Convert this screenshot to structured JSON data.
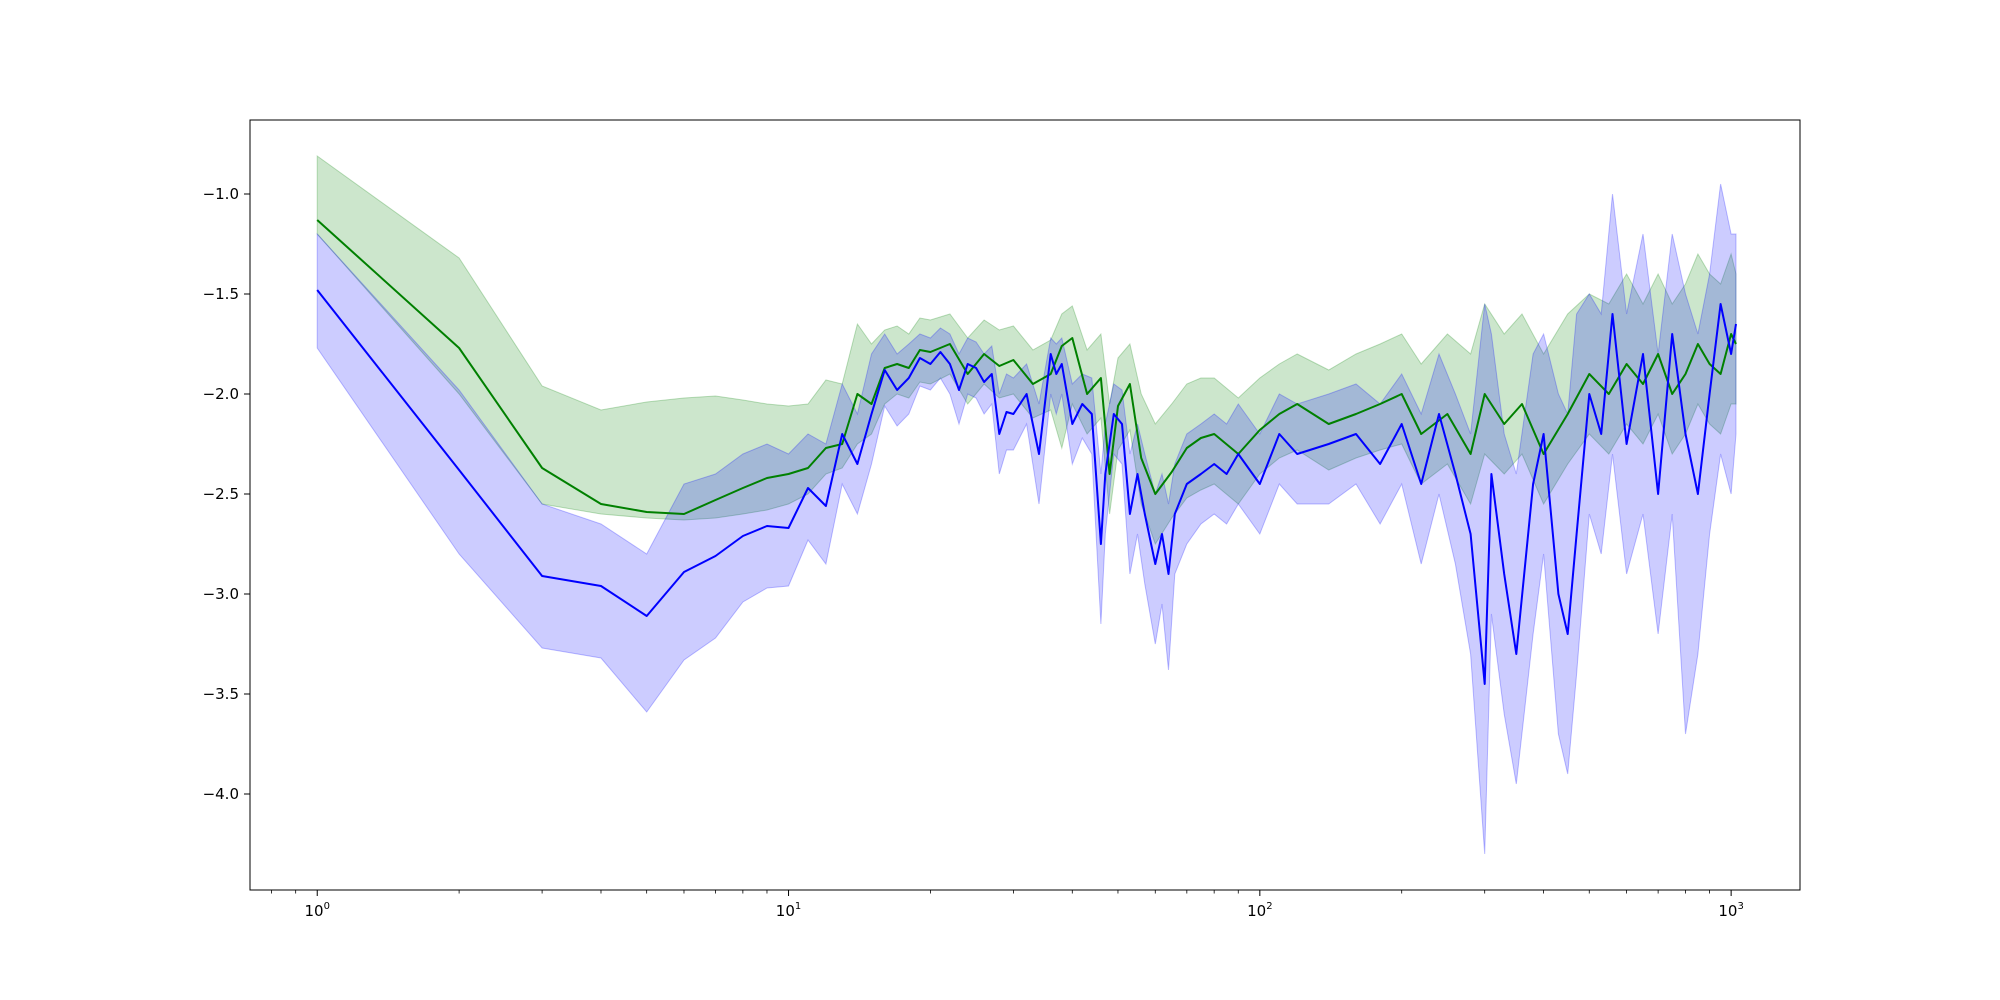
{
  "chart_data": {
    "type": "line",
    "title": "",
    "xlabel": "",
    "ylabel": "",
    "xscale": "log",
    "xlim": [
      0.72,
      1400
    ],
    "ylim": [
      -4.48,
      -0.63
    ],
    "grid": false,
    "legend": null,
    "x_ticks": [
      {
        "base": "10",
        "exp": "0",
        "value": 1
      },
      {
        "base": "10",
        "exp": "1",
        "value": 10
      },
      {
        "base": "10",
        "exp": "2",
        "value": 100
      },
      {
        "base": "10",
        "exp": "3",
        "value": 1000
      }
    ],
    "y_ticks": [
      {
        "label": "−1.0",
        "value": -1.0
      },
      {
        "label": "−1.5",
        "value": -1.5
      },
      {
        "label": "−2.0",
        "value": -2.0
      },
      {
        "label": "−2.5",
        "value": -2.5
      },
      {
        "label": "−3.0",
        "value": -3.0
      },
      {
        "label": "−3.5",
        "value": -3.5
      },
      {
        "label": "−4.0",
        "value": -4.0
      }
    ],
    "series": [
      {
        "color": "#008000",
        "band_color": "#008000",
        "band_opacity": 0.2,
        "x": [
          1,
          2,
          3,
          4,
          5,
          6,
          7,
          8,
          9,
          10,
          11,
          12,
          13,
          14,
          15,
          16,
          17,
          18,
          19,
          20,
          22,
          24,
          26,
          28,
          30,
          33,
          36,
          38,
          40,
          43,
          46,
          48,
          50,
          53,
          56,
          60,
          65,
          70,
          75,
          80,
          90,
          100,
          110,
          120,
          140,
          160,
          180,
          200,
          220,
          250,
          280,
          300,
          330,
          360,
          400,
          450,
          500,
          550,
          600,
          650,
          700,
          750,
          800,
          850,
          900,
          950,
          1000,
          1024
        ],
        "y": [
          -1.13,
          -1.77,
          -2.37,
          -2.55,
          -2.59,
          -2.6,
          -2.53,
          -2.47,
          -2.42,
          -2.4,
          -2.37,
          -2.27,
          -2.25,
          -2.0,
          -2.05,
          -1.87,
          -1.85,
          -1.87,
          -1.78,
          -1.79,
          -1.75,
          -1.9,
          -1.8,
          -1.86,
          -1.83,
          -1.95,
          -1.9,
          -1.76,
          -1.72,
          -2.0,
          -1.92,
          -2.4,
          -2.06,
          -1.95,
          -2.32,
          -2.5,
          -2.39,
          -2.27,
          -2.22,
          -2.2,
          -2.3,
          -2.18,
          -2.1,
          -2.05,
          -2.15,
          -2.1,
          -2.05,
          -2.0,
          -2.2,
          -2.1,
          -2.3,
          -2.0,
          -2.15,
          -2.05,
          -2.3,
          -2.1,
          -1.9,
          -2.0,
          -1.85,
          -1.95,
          -1.8,
          -2.0,
          -1.9,
          -1.75,
          -1.85,
          -1.9,
          -1.7,
          -1.75
        ],
        "upper": [
          -0.81,
          -1.32,
          -1.96,
          -2.08,
          -2.04,
          -2.02,
          -2.01,
          -2.03,
          -2.05,
          -2.06,
          -2.05,
          -1.93,
          -1.95,
          -1.65,
          -1.75,
          -1.68,
          -1.66,
          -1.7,
          -1.62,
          -1.63,
          -1.6,
          -1.72,
          -1.63,
          -1.68,
          -1.66,
          -1.78,
          -1.73,
          -1.6,
          -1.56,
          -1.78,
          -1.7,
          -2.05,
          -1.82,
          -1.75,
          -2.0,
          -2.15,
          -2.05,
          -1.95,
          -1.92,
          -1.92,
          -2.02,
          -1.92,
          -1.85,
          -1.8,
          -1.88,
          -1.8,
          -1.75,
          -1.7,
          -1.85,
          -1.7,
          -1.8,
          -1.55,
          -1.7,
          -1.6,
          -1.8,
          -1.6,
          -1.5,
          -1.55,
          -1.4,
          -1.55,
          -1.4,
          -1.55,
          -1.45,
          -1.3,
          -1.4,
          -1.45,
          -1.3,
          -1.4
        ],
        "lower": [
          -1.2,
          -2.0,
          -2.55,
          -2.6,
          -2.62,
          -2.63,
          -2.62,
          -2.6,
          -2.58,
          -2.55,
          -2.5,
          -2.4,
          -2.37,
          -2.25,
          -2.2,
          -2.05,
          -2.0,
          -2.02,
          -1.94,
          -1.95,
          -1.9,
          -2.05,
          -1.95,
          -2.02,
          -2.0,
          -2.12,
          -2.08,
          -2.27,
          -2.05,
          -2.2,
          -2.12,
          -2.6,
          -2.28,
          -2.18,
          -2.55,
          -2.75,
          -2.62,
          -2.52,
          -2.48,
          -2.45,
          -2.55,
          -2.4,
          -2.32,
          -2.28,
          -2.38,
          -2.32,
          -2.28,
          -2.25,
          -2.45,
          -2.35,
          -2.55,
          -2.3,
          -2.4,
          -2.3,
          -2.55,
          -2.35,
          -2.2,
          -2.3,
          -2.15,
          -2.25,
          -2.1,
          -2.3,
          -2.2,
          -2.05,
          -2.15,
          -2.2,
          -2.05,
          -2.05
        ]
      },
      {
        "color": "#0000ff",
        "band_color": "#0000ff",
        "band_opacity": 0.2,
        "x": [
          1,
          2,
          3,
          4,
          5,
          6,
          7,
          8,
          9,
          10,
          11,
          12,
          13,
          14,
          15,
          16,
          17,
          18,
          19,
          20,
          21,
          22,
          23,
          24,
          25,
          26,
          27,
          28,
          29,
          30,
          32,
          34,
          36,
          37,
          38,
          40,
          42,
          44,
          46,
          47,
          49,
          51,
          53,
          55,
          57,
          60,
          62,
          64,
          66,
          70,
          75,
          80,
          85,
          90,
          100,
          110,
          120,
          140,
          160,
          180,
          200,
          220,
          240,
          260,
          280,
          300,
          310,
          330,
          350,
          380,
          400,
          430,
          450,
          470,
          500,
          530,
          560,
          600,
          650,
          700,
          750,
          800,
          850,
          900,
          950,
          1000,
          1024
        ],
        "y": [
          -1.48,
          -2.38,
          -2.91,
          -2.96,
          -3.11,
          -2.89,
          -2.81,
          -2.71,
          -2.66,
          -2.67,
          -2.47,
          -2.56,
          -2.2,
          -2.35,
          -2.1,
          -1.88,
          -1.98,
          -1.92,
          -1.82,
          -1.85,
          -1.79,
          -1.85,
          -1.98,
          -1.85,
          -1.87,
          -1.94,
          -1.9,
          -2.2,
          -2.09,
          -2.1,
          -2.0,
          -2.3,
          -1.8,
          -1.9,
          -1.85,
          -2.15,
          -2.05,
          -2.1,
          -2.75,
          -2.4,
          -2.1,
          -2.15,
          -2.6,
          -2.4,
          -2.6,
          -2.85,
          -2.7,
          -2.9,
          -2.6,
          -2.45,
          -2.4,
          -2.35,
          -2.4,
          -2.3,
          -2.45,
          -2.2,
          -2.3,
          -2.25,
          -2.2,
          -2.35,
          -2.15,
          -2.45,
          -2.1,
          -2.4,
          -2.7,
          -3.45,
          -2.4,
          -2.9,
          -3.3,
          -2.45,
          -2.2,
          -3.0,
          -3.2,
          -2.7,
          -2.0,
          -2.2,
          -1.6,
          -2.25,
          -1.8,
          -2.5,
          -1.7,
          -2.2,
          -2.5,
          -2.0,
          -1.55,
          -1.8,
          -1.65
        ],
        "upper": [
          -1.2,
          -1.98,
          -2.55,
          -2.65,
          -2.8,
          -2.45,
          -2.4,
          -2.3,
          -2.25,
          -2.3,
          -2.2,
          -2.25,
          -1.95,
          -2.1,
          -1.8,
          -1.7,
          -1.8,
          -1.75,
          -1.7,
          -1.72,
          -1.67,
          -1.7,
          -1.8,
          -1.72,
          -1.74,
          -1.8,
          -1.76,
          -2.0,
          -1.9,
          -1.92,
          -1.85,
          -2.05,
          -1.72,
          -1.75,
          -1.72,
          -1.95,
          -1.9,
          -1.92,
          -2.4,
          -2.15,
          -1.95,
          -1.98,
          -2.3,
          -2.15,
          -2.3,
          -2.5,
          -2.4,
          -2.55,
          -2.35,
          -2.2,
          -2.15,
          -2.1,
          -2.15,
          -2.05,
          -2.2,
          -2.0,
          -2.05,
          -2.0,
          -1.95,
          -2.05,
          -1.9,
          -2.1,
          -1.8,
          -2.0,
          -2.2,
          -1.55,
          -1.7,
          -2.2,
          -2.4,
          -1.8,
          -1.7,
          -2.0,
          -2.1,
          -1.6,
          -1.5,
          -1.6,
          -1.0,
          -1.6,
          -1.2,
          -1.8,
          -1.2,
          -1.5,
          -1.7,
          -1.4,
          -0.95,
          -1.2,
          -1.2
        ],
        "lower": [
          -1.77,
          -2.8,
          -3.27,
          -3.32,
          -3.59,
          -3.33,
          -3.22,
          -3.04,
          -2.97,
          -2.96,
          -2.73,
          -2.85,
          -2.45,
          -2.6,
          -2.35,
          -2.06,
          -2.16,
          -2.1,
          -1.96,
          -1.98,
          -1.92,
          -2.0,
          -2.15,
          -2.0,
          -2.02,
          -2.1,
          -2.05,
          -2.4,
          -2.28,
          -2.28,
          -2.15,
          -2.55,
          -2.0,
          -2.1,
          -2.0,
          -2.35,
          -2.22,
          -2.3,
          -3.15,
          -2.7,
          -2.3,
          -2.35,
          -2.9,
          -2.7,
          -2.95,
          -3.25,
          -3.05,
          -3.38,
          -2.9,
          -2.75,
          -2.65,
          -2.6,
          -2.65,
          -2.55,
          -2.7,
          -2.45,
          -2.55,
          -2.55,
          -2.45,
          -2.65,
          -2.45,
          -2.85,
          -2.5,
          -2.85,
          -3.3,
          -4.3,
          -3.1,
          -3.6,
          -3.95,
          -3.2,
          -2.8,
          -3.7,
          -3.9,
          -3.4,
          -2.6,
          -2.8,
          -2.3,
          -2.9,
          -2.6,
          -3.2,
          -2.6,
          -3.7,
          -3.3,
          -2.7,
          -2.3,
          -2.5,
          -2.2
        ]
      }
    ]
  }
}
